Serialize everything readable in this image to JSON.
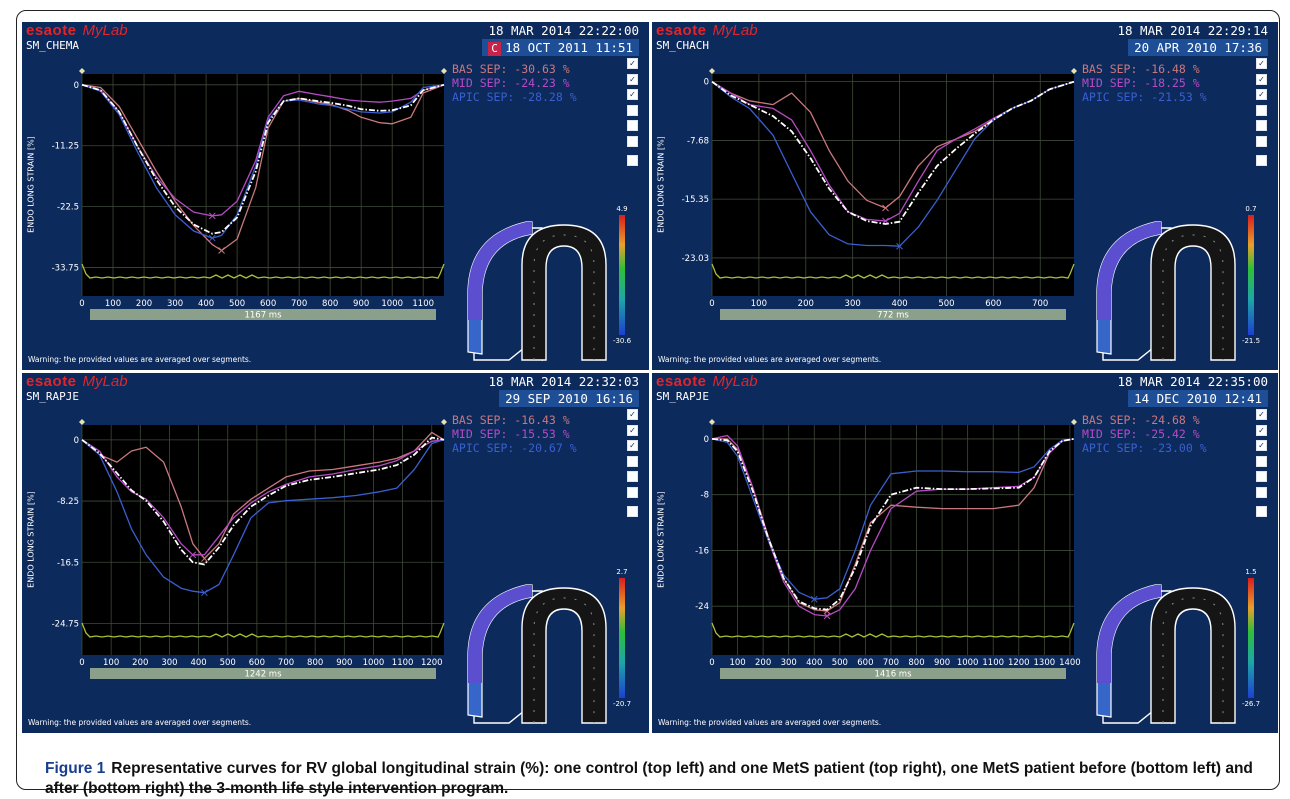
{
  "caption": {
    "label": "Figure 1",
    "text": "Representative curves for RV global longitudinal strain (%): one control (top left) and one MetS patient (top right), one MetS patient before (bottom left) and after (bottom right) the 3-month life style intervention program."
  },
  "common": {
    "brand_a": "esaote",
    "brand_b": "MyLab",
    "ylabel": "ENDO LONG STRAIN [%]",
    "warning": "Warning: the provided values are averaged over segments."
  },
  "colors": {
    "panel_bg": "#0d2a5c",
    "plot_bg": "#000000",
    "grid": "#3f4a3a",
    "bas": "#c9787e",
    "mid": "#b74bc4",
    "apic": "#3a5fd0",
    "avg": "#ffffff",
    "ecg": "#a8c238",
    "xbar": "#8aa08a"
  },
  "chart_data": [
    {
      "type": "line",
      "panel": "top-left",
      "patient": "SM_CHEMA",
      "date1": "18 MAR 2014 22:22:00",
      "date2": "18 OCT 2011 11:51",
      "badge": "C",
      "duration": "1167 ms",
      "xlim": [
        0,
        1167
      ],
      "ylim": [
        -39,
        2
      ],
      "yticks": [
        "0",
        "-11.25",
        "-22.5",
        "-33.75"
      ],
      "ytick_values": [
        0,
        -11.25,
        -22.5,
        -33.75
      ],
      "xticks": [
        0,
        100,
        200,
        300,
        400,
        500,
        600,
        700,
        800,
        900,
        1000,
        1100
      ],
      "legend": [
        "BAS SEP: -30.63  %",
        "MID SEP: -24.23  %",
        "APIC SEP: -28.28  %"
      ],
      "checks": [
        true,
        true,
        true,
        false,
        false,
        false,
        false
      ],
      "colorbar": [
        "4.9",
        "-30.6"
      ],
      "series": [
        {
          "name": "BAS SEP",
          "x": [
            0,
            60,
            120,
            180,
            240,
            300,
            360,
            420,
            450,
            500,
            560,
            600,
            650,
            700,
            760,
            800,
            860,
            900,
            960,
            1000,
            1060,
            1100,
            1167
          ],
          "y": [
            0,
            -0.5,
            -4,
            -10,
            -16,
            -21.5,
            -26,
            -29.5,
            -30.6,
            -28.5,
            -19,
            -8,
            -3,
            -2.5,
            -3.2,
            -3.6,
            -4.8,
            -6,
            -7,
            -7.2,
            -6,
            -1.5,
            0
          ]
        },
        {
          "name": "MID SEP",
          "x": [
            0,
            60,
            120,
            180,
            240,
            300,
            360,
            420,
            450,
            500,
            560,
            600,
            650,
            700,
            760,
            800,
            860,
            900,
            960,
            1000,
            1060,
            1100,
            1167
          ],
          "y": [
            0,
            -1,
            -5,
            -11.5,
            -17,
            -21,
            -23.5,
            -24.2,
            -24,
            -21.5,
            -14,
            -6,
            -2,
            -1.2,
            -1.8,
            -2.2,
            -2.8,
            -3,
            -3.2,
            -3,
            -2.5,
            -1,
            0
          ]
        },
        {
          "name": "APIC SEP",
          "x": [
            0,
            60,
            120,
            180,
            240,
            300,
            360,
            420,
            450,
            500,
            560,
            600,
            650,
            700,
            760,
            800,
            860,
            900,
            960,
            1000,
            1060,
            1100,
            1167
          ],
          "y": [
            0,
            -1.2,
            -5.5,
            -12.5,
            -19,
            -24,
            -27,
            -28.3,
            -27.8,
            -24,
            -15,
            -6.5,
            -3,
            -2.8,
            -3.5,
            -3.8,
            -4.5,
            -5,
            -5.2,
            -5,
            -3.2,
            -0.5,
            0
          ]
        },
        {
          "name": "",
          "x": [
            0,
            60,
            120,
            180,
            240,
            300,
            360,
            420,
            450,
            500,
            560,
            600,
            650,
            700,
            760,
            800,
            860,
            900,
            960,
            1000,
            1060,
            1100,
            1167
          ],
          "y": [
            0,
            -1,
            -5,
            -11.5,
            -17.5,
            -22.5,
            -25.8,
            -27.5,
            -27.2,
            -24.5,
            -16,
            -7,
            -3,
            -2.5,
            -3,
            -3.3,
            -3.9,
            -4.5,
            -4.8,
            -4.7,
            -3.8,
            -1,
            0
          ]
        }
      ]
    },
    {
      "type": "line",
      "panel": "top-right",
      "patient": "SM_CHACH",
      "date1": "18 MAR 2014 22:29:14",
      "date2": "20 APR 2010 17:36",
      "badge": "",
      "duration": "772 ms",
      "xlim": [
        0,
        772
      ],
      "ylim": [
        -28,
        1
      ],
      "yticks": [
        "0",
        "-7.68",
        "-15.35",
        "-23.03"
      ],
      "ytick_values": [
        0,
        -7.68,
        -15.35,
        -23.03
      ],
      "xticks": [
        0,
        100,
        200,
        300,
        400,
        500,
        600,
        700
      ],
      "legend": [
        "BAS SEP: -16.48  %",
        "MID SEP: -18.25  %",
        "APIC SEP: -21.53  %"
      ],
      "checks": [
        true,
        true,
        true,
        false,
        false,
        false,
        false
      ],
      "colorbar": [
        "0.7",
        "-21.5"
      ],
      "series": [
        {
          "name": "BAS SEP",
          "x": [
            0,
            40,
            80,
            130,
            170,
            210,
            250,
            290,
            330,
            370,
            400,
            440,
            480,
            520,
            560,
            600,
            640,
            680,
            720,
            772
          ],
          "y": [
            0,
            -1.5,
            -2.5,
            -3,
            -1.5,
            -4,
            -9,
            -13,
            -15.5,
            -16.5,
            -15,
            -11,
            -8.5,
            -7.5,
            -6.5,
            -5,
            -3.5,
            -2.5,
            -1,
            0
          ]
        },
        {
          "name": "MID SEP",
          "x": [
            0,
            40,
            80,
            130,
            170,
            210,
            250,
            290,
            330,
            370,
            400,
            440,
            480,
            520,
            560,
            600,
            640,
            680,
            720,
            772
          ],
          "y": [
            0,
            -1.5,
            -3,
            -3.5,
            -5,
            -9,
            -13.5,
            -17,
            -18,
            -18.2,
            -17.2,
            -13,
            -9,
            -7.5,
            -6.2,
            -4.8,
            -3.5,
            -2.5,
            -1,
            0
          ]
        },
        {
          "name": "APIC SEP",
          "x": [
            0,
            40,
            80,
            130,
            170,
            210,
            250,
            290,
            330,
            370,
            400,
            440,
            480,
            520,
            560,
            600,
            640,
            680,
            720,
            772
          ],
          "y": [
            0,
            -2,
            -3.5,
            -7,
            -12,
            -17,
            -20,
            -21.2,
            -21.4,
            -21.4,
            -21.5,
            -19,
            -15.5,
            -11.5,
            -7.5,
            -5,
            -3.5,
            -2.5,
            -1,
            0
          ]
        },
        {
          "name": "",
          "x": [
            0,
            40,
            80,
            130,
            170,
            210,
            250,
            290,
            330,
            370,
            400,
            440,
            480,
            520,
            560,
            600,
            640,
            680,
            720,
            772
          ],
          "y": [
            0,
            -1.8,
            -3,
            -4.5,
            -6.5,
            -10,
            -14,
            -17,
            -18.2,
            -18.6,
            -18.3,
            -14.5,
            -11,
            -8.8,
            -6.8,
            -5,
            -3.5,
            -2.5,
            -1,
            0
          ]
        }
      ]
    },
    {
      "type": "line",
      "panel": "bottom-left",
      "patient": "SM_RAPJE",
      "date1": "18 MAR 2014 22:32:03",
      "date2": "29 SEP 2010 16:16",
      "badge": "",
      "duration": "1242 ms",
      "xlim": [
        0,
        1242
      ],
      "ylim": [
        -29,
        2
      ],
      "yticks": [
        "0",
        "-8.25",
        "-16.5",
        "-24.75"
      ],
      "ytick_values": [
        0,
        -8.25,
        -16.5,
        -24.75
      ],
      "xticks": [
        0,
        100,
        200,
        300,
        400,
        500,
        600,
        700,
        800,
        900,
        1000,
        1100,
        1200
      ],
      "legend": [
        "BAS SEP: -16.43  %",
        "MID SEP: -15.53  %",
        "APIC SEP: -20.67  %"
      ],
      "checks": [
        true,
        true,
        true,
        false,
        false,
        false,
        false
      ],
      "colorbar": [
        "2.7",
        "-20.7"
      ],
      "series": [
        {
          "name": "BAS SEP",
          "x": [
            0,
            60,
            120,
            170,
            220,
            280,
            340,
            380,
            420,
            470,
            520,
            580,
            640,
            700,
            780,
            860,
            940,
            1020,
            1080,
            1140,
            1200,
            1242
          ],
          "y": [
            0,
            -2,
            -3,
            -1.5,
            -1,
            -3,
            -9,
            -14,
            -16,
            -14,
            -10,
            -8,
            -6.5,
            -5,
            -4.2,
            -4,
            -3.5,
            -3,
            -2.5,
            -1.5,
            1,
            0
          ]
        },
        {
          "name": "MID SEP",
          "x": [
            0,
            60,
            120,
            170,
            220,
            280,
            340,
            380,
            420,
            470,
            520,
            580,
            640,
            700,
            780,
            860,
            940,
            1020,
            1080,
            1140,
            1200,
            1242
          ],
          "y": [
            0,
            -1.5,
            -5,
            -7,
            -8,
            -10.5,
            -14,
            -15.5,
            -15.5,
            -13,
            -10.5,
            -8.5,
            -7,
            -6,
            -5,
            -4.6,
            -4,
            -3.5,
            -2.8,
            -1.5,
            -0.2,
            0
          ]
        },
        {
          "name": "APIC SEP",
          "x": [
            0,
            60,
            120,
            170,
            220,
            280,
            340,
            380,
            420,
            470,
            520,
            580,
            640,
            700,
            780,
            860,
            940,
            1020,
            1080,
            1140,
            1200,
            1242
          ],
          "y": [
            0,
            -2,
            -7,
            -12,
            -15.5,
            -18.5,
            -20,
            -20.4,
            -20.6,
            -19.5,
            -15.5,
            -10.5,
            -8.5,
            -8.2,
            -8,
            -7.8,
            -7.5,
            -7,
            -6.5,
            -4,
            -0.5,
            0
          ]
        },
        {
          "name": "",
          "x": [
            0,
            60,
            120,
            170,
            220,
            280,
            340,
            380,
            420,
            470,
            520,
            580,
            640,
            700,
            780,
            860,
            940,
            1020,
            1080,
            1140,
            1200,
            1242
          ],
          "y": [
            0,
            -1.8,
            -4.5,
            -6.8,
            -8.2,
            -11,
            -14.8,
            -16.5,
            -16.8,
            -14.5,
            -11.5,
            -9,
            -7.5,
            -6.2,
            -5.4,
            -5,
            -4.5,
            -4,
            -3.4,
            -2,
            0.3,
            0
          ]
        }
      ]
    },
    {
      "type": "line",
      "panel": "bottom-right",
      "patient": "SM_RAPJE",
      "date1": "18 MAR 2014 22:35:00",
      "date2": "14 DEC 2010 12:41",
      "badge": "",
      "duration": "1416 ms",
      "xlim": [
        0,
        1416
      ],
      "ylim": [
        -31,
        2
      ],
      "yticks": [
        "0",
        "-8",
        "-16",
        "-24"
      ],
      "ytick_values": [
        0,
        -8,
        -16,
        -24
      ],
      "xticks": [
        0,
        100,
        200,
        300,
        400,
        500,
        600,
        700,
        800,
        900,
        1000,
        1100,
        1200,
        1300,
        1400
      ],
      "legend": [
        "BAS SEP: -24.68  %",
        "MID SEP: -25.42  %",
        "APIC SEP: -23.00  %"
      ],
      "checks": [
        true,
        true,
        true,
        false,
        false,
        false,
        false
      ],
      "colorbar": [
        "1.5",
        "-26.7"
      ],
      "series": [
        {
          "name": "BAS SEP",
          "x": [
            0,
            60,
            100,
            160,
            220,
            280,
            340,
            400,
            450,
            500,
            560,
            620,
            700,
            800,
            900,
            1000,
            1100,
            1200,
            1260,
            1320,
            1370,
            1416
          ],
          "y": [
            0,
            0,
            -1.5,
            -7,
            -14,
            -20,
            -23.5,
            -24.5,
            -24.7,
            -23.5,
            -18,
            -12,
            -9.5,
            -9.8,
            -10,
            -10,
            -10,
            -9.5,
            -7,
            -2,
            -0.3,
            0
          ]
        },
        {
          "name": "MID SEP",
          "x": [
            0,
            60,
            100,
            160,
            220,
            280,
            340,
            400,
            450,
            500,
            560,
            620,
            700,
            800,
            900,
            1000,
            1100,
            1200,
            1260,
            1320,
            1370,
            1416
          ],
          "y": [
            0,
            0.5,
            -1,
            -7,
            -14.5,
            -20.5,
            -24,
            -25.2,
            -25.4,
            -24.5,
            -21.5,
            -16,
            -10,
            -7.5,
            -7.2,
            -7.2,
            -7,
            -6.8,
            -5.5,
            -2,
            -0.3,
            0
          ]
        },
        {
          "name": "APIC SEP",
          "x": [
            0,
            60,
            100,
            160,
            220,
            280,
            340,
            400,
            450,
            500,
            560,
            620,
            700,
            800,
            900,
            1000,
            1100,
            1200,
            1260,
            1320,
            1370,
            1416
          ],
          "y": [
            0,
            -0.5,
            -2.5,
            -8.5,
            -14.5,
            -19.5,
            -22,
            -23,
            -22.8,
            -21.5,
            -16,
            -9.5,
            -5,
            -4.6,
            -4.6,
            -4.7,
            -4.7,
            -4.8,
            -4,
            -1.5,
            -0.2,
            0
          ]
        },
        {
          "name": "",
          "x": [
            0,
            60,
            100,
            160,
            220,
            280,
            340,
            400,
            450,
            500,
            560,
            620,
            700,
            800,
            900,
            1000,
            1100,
            1200,
            1260,
            1320,
            1370,
            1416
          ],
          "y": [
            0,
            -0.2,
            -1.8,
            -7.5,
            -14.2,
            -20,
            -23.3,
            -24.3,
            -24.5,
            -23,
            -18.5,
            -12.5,
            -8,
            -7,
            -7.2,
            -7.2,
            -7.1,
            -7,
            -5.5,
            -1.8,
            -0.3,
            0
          ]
        }
      ]
    }
  ]
}
